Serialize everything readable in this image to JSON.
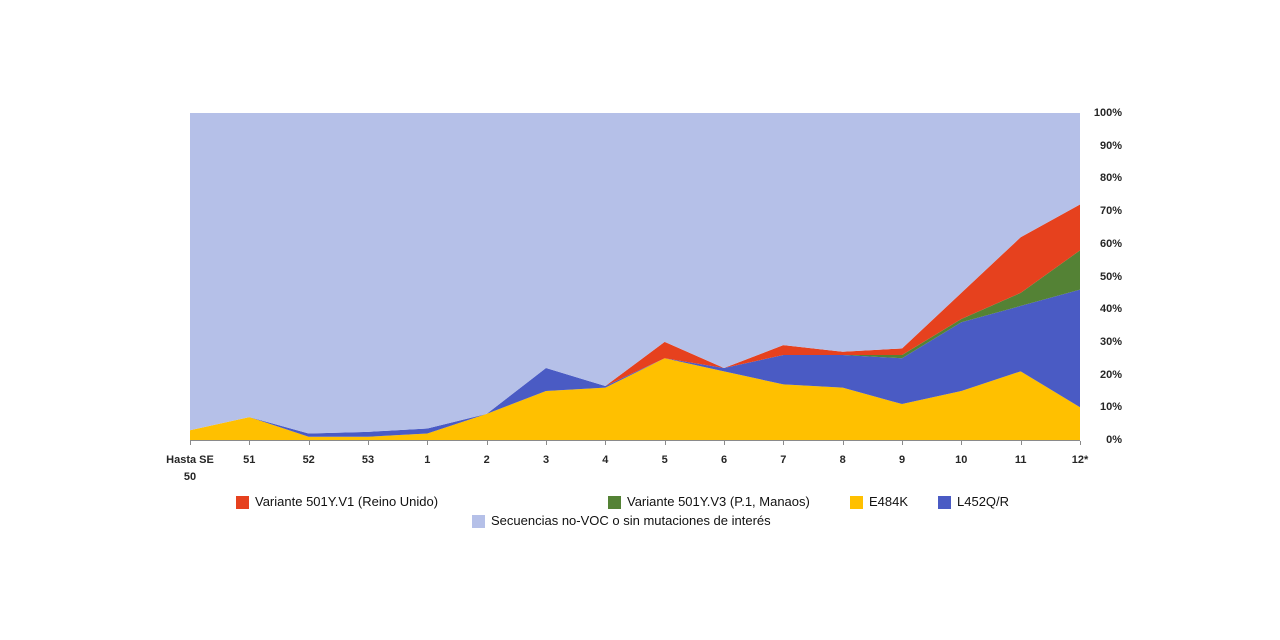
{
  "chart_data": {
    "type": "area",
    "stacked": true,
    "percent_axis": true,
    "title": "",
    "xlabel": "",
    "ylabel": "",
    "ylim": [
      0,
      100
    ],
    "grid": false,
    "legend_position": "bottom",
    "categories": [
      "Hasta SE\n50",
      "51",
      "52",
      "53",
      "1",
      "2",
      "3",
      "4",
      "5",
      "6",
      "7",
      "8",
      "9",
      "10",
      "11",
      "12*"
    ],
    "yticks": [
      "0%",
      "10%",
      "20%",
      "30%",
      "40%",
      "50%",
      "60%",
      "70%",
      "80%",
      "90%",
      "100%"
    ],
    "series": [
      {
        "id": "e484k",
        "name": "E484K",
        "color": "#FFC000",
        "values": [
          3,
          7,
          1,
          1,
          2,
          8,
          15,
          16,
          25,
          21,
          17,
          16,
          11,
          15,
          21,
          10
        ]
      },
      {
        "id": "l452qr",
        "name": "L452Q/R",
        "color": "#4A5BC4",
        "values": [
          0,
          0,
          1,
          1.5,
          1.5,
          0,
          7,
          0.5,
          0,
          1,
          9,
          10,
          14,
          21,
          20,
          36
        ]
      },
      {
        "id": "v501y-v3",
        "name": "Variante 501Y.V3 (P.1, Manaos)",
        "color": "#548235",
        "values": [
          0,
          0,
          0,
          0,
          0,
          0,
          0,
          0,
          0,
          0,
          0,
          0,
          1,
          1,
          4,
          12
        ]
      },
      {
        "id": "v501y-v1",
        "name": "Variante 501Y.V1 (Reino Unido)",
        "color": "#E6411E",
        "values": [
          0,
          0,
          0,
          0,
          0,
          0,
          0,
          0,
          5,
          0,
          3,
          1,
          2,
          8,
          17,
          14
        ]
      },
      {
        "id": "no-voc",
        "name": "Secuencias no-VOC o sin mutaciones de interés",
        "color": "#B5C0E8",
        "values": [
          97,
          93,
          98,
          97.5,
          96.5,
          92,
          78,
          83.5,
          70,
          78,
          71,
          73,
          72,
          55,
          38,
          28
        ]
      }
    ],
    "legend_order": [
      "v501y-v1",
      "v501y-v3",
      "e484k",
      "l452qr",
      "no-voc"
    ]
  }
}
